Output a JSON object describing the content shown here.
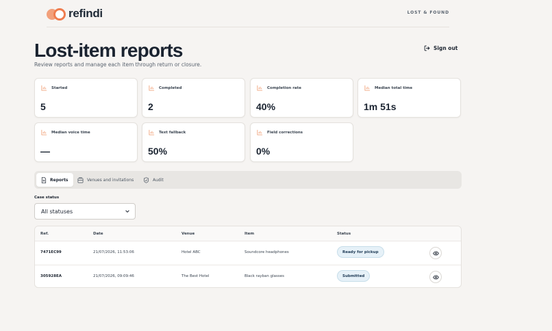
{
  "app": {
    "logo_text": "refindi",
    "nav_label": "LOST & FOUND"
  },
  "page": {
    "title": "Lost-item reports",
    "subtitle": "Review reports and manage each item through return or closure.",
    "signout_label": "Sign out"
  },
  "stats": [
    {
      "label": "Started",
      "value": "5"
    },
    {
      "label": "Completed",
      "value": "2"
    },
    {
      "label": "Completion rate",
      "value": "40%"
    },
    {
      "label": "Median total time",
      "value": "1m 51s"
    },
    {
      "label": "Median voice time",
      "value": "—"
    },
    {
      "label": "Text fallback",
      "value": "50%"
    },
    {
      "label": "Field corrections",
      "value": "0%"
    }
  ],
  "tabs": [
    {
      "label": "Reports",
      "icon": "document-icon",
      "active": true
    },
    {
      "label": "Venues and invitations",
      "icon": "building-icon",
      "active": false
    },
    {
      "label": "Audit",
      "icon": "shield-check-icon",
      "active": false
    }
  ],
  "filter": {
    "label": "Case status",
    "selected": "All statuses"
  },
  "table": {
    "columns": [
      "Ref.",
      "Date",
      "Venue",
      "Item",
      "Status"
    ],
    "rows": [
      {
        "ref": "7471EC99",
        "date": "21/07/2026, 11:53:06",
        "venue": "Hotel ABC",
        "item": "Soundcore headphones",
        "status": "Ready for pickup"
      },
      {
        "ref": "305928EA",
        "date": "21/07/2026, 09:09:46",
        "venue": "The Best Hotel",
        "item": "Black rayban glasses",
        "status": "Submitted"
      }
    ]
  },
  "colors": {
    "accent": "#ef7c4e",
    "accent_light": "#f2a07b",
    "badge_bg": "#e6f1f8",
    "page_bg": "#f6f4f2"
  }
}
